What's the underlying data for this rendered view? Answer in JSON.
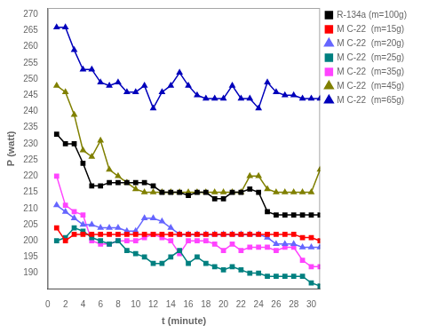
{
  "chart_data": {
    "type": "line",
    "xlabel": "t (minute)",
    "ylabel": "P (watt)",
    "xlim": [
      0,
      31
    ],
    "ylim": [
      185,
      272
    ],
    "xticks": [
      0,
      2,
      4,
      6,
      8,
      10,
      12,
      14,
      16,
      18,
      20,
      22,
      24,
      26,
      28,
      30
    ],
    "yticks": [
      190,
      195,
      200,
      205,
      210,
      215,
      220,
      225,
      230,
      235,
      240,
      245,
      250,
      255,
      260,
      265,
      270
    ],
    "x": [
      1,
      2,
      3,
      4,
      5,
      6,
      7,
      8,
      9,
      10,
      11,
      12,
      13,
      14,
      15,
      16,
      17,
      18,
      19,
      20,
      21,
      22,
      23,
      24,
      25,
      26,
      27,
      28,
      29,
      30,
      31
    ],
    "series": [
      {
        "name": "R-134a (m=100g)",
        "color": "#000000",
        "marker": "square",
        "values": [
          233,
          230,
          230,
          224,
          217,
          217,
          218,
          218,
          218,
          218,
          218,
          217,
          215,
          215,
          215,
          214,
          215,
          215,
          213,
          213,
          215,
          215,
          216,
          215,
          209,
          208,
          208,
          208,
          208,
          208,
          208
        ]
      },
      {
        "name": "M C-22  (m=15g)",
        "color": "#ff0000",
        "marker": "square",
        "values": [
          204,
          200,
          202,
          202,
          202,
          202,
          202,
          202,
          202,
          202,
          202,
          202,
          202,
          202,
          202,
          202,
          202,
          202,
          202,
          202,
          202,
          202,
          202,
          202,
          202,
          202,
          202,
          202,
          201,
          201,
          200
        ]
      },
      {
        "name": "M C-22  (m=20g)",
        "color": "#6666ff",
        "marker": "triangle",
        "values": [
          211,
          209,
          207,
          205,
          205,
          204,
          204,
          204,
          203,
          203,
          207,
          207,
          206,
          204,
          202,
          202,
          202,
          202,
          202,
          202,
          202,
          202,
          202,
          202,
          201,
          199,
          199,
          199,
          198,
          198,
          198
        ]
      },
      {
        "name": "M C-22  (m=25g)",
        "color": "#008080",
        "marker": "square",
        "values": [
          200,
          201,
          204,
          203,
          201,
          200,
          199,
          200,
          197,
          196,
          195,
          193,
          193,
          195,
          197,
          193,
          195,
          193,
          192,
          191,
          192,
          191,
          190,
          190,
          189,
          189,
          189,
          189,
          189,
          187,
          186
        ]
      },
      {
        "name": "M C-22  (m=35g)",
        "color": "#ff44ff",
        "marker": "square",
        "values": [
          220,
          211,
          209,
          208,
          200,
          199,
          199,
          200,
          200,
          200,
          201,
          202,
          201,
          200,
          196,
          200,
          200,
          200,
          199,
          197,
          199,
          197,
          198,
          198,
          198,
          197,
          198,
          198,
          194,
          192,
          192
        ]
      },
      {
        "name": "M C-22  (m=45g)",
        "color": "#808000",
        "marker": "triangle",
        "values": [
          248,
          246,
          239,
          228,
          226,
          231,
          222,
          220,
          218,
          216,
          215,
          215,
          215,
          215,
          215,
          215,
          215,
          215,
          215,
          215,
          215,
          215,
          220,
          220,
          216,
          215,
          215,
          215,
          215,
          215,
          222
        ]
      },
      {
        "name": "M C-22  (m=65g)",
        "color": "#0000bb",
        "marker": "triangle",
        "values": [
          266,
          266,
          259,
          253,
          253,
          249,
          248,
          249,
          246,
          246,
          248,
          241,
          246,
          248,
          252,
          248,
          245,
          244,
          244,
          244,
          248,
          244,
          244,
          241,
          249,
          246,
          245,
          245,
          244,
          244,
          244
        ]
      }
    ],
    "legend": "upper right",
    "grid": false
  }
}
